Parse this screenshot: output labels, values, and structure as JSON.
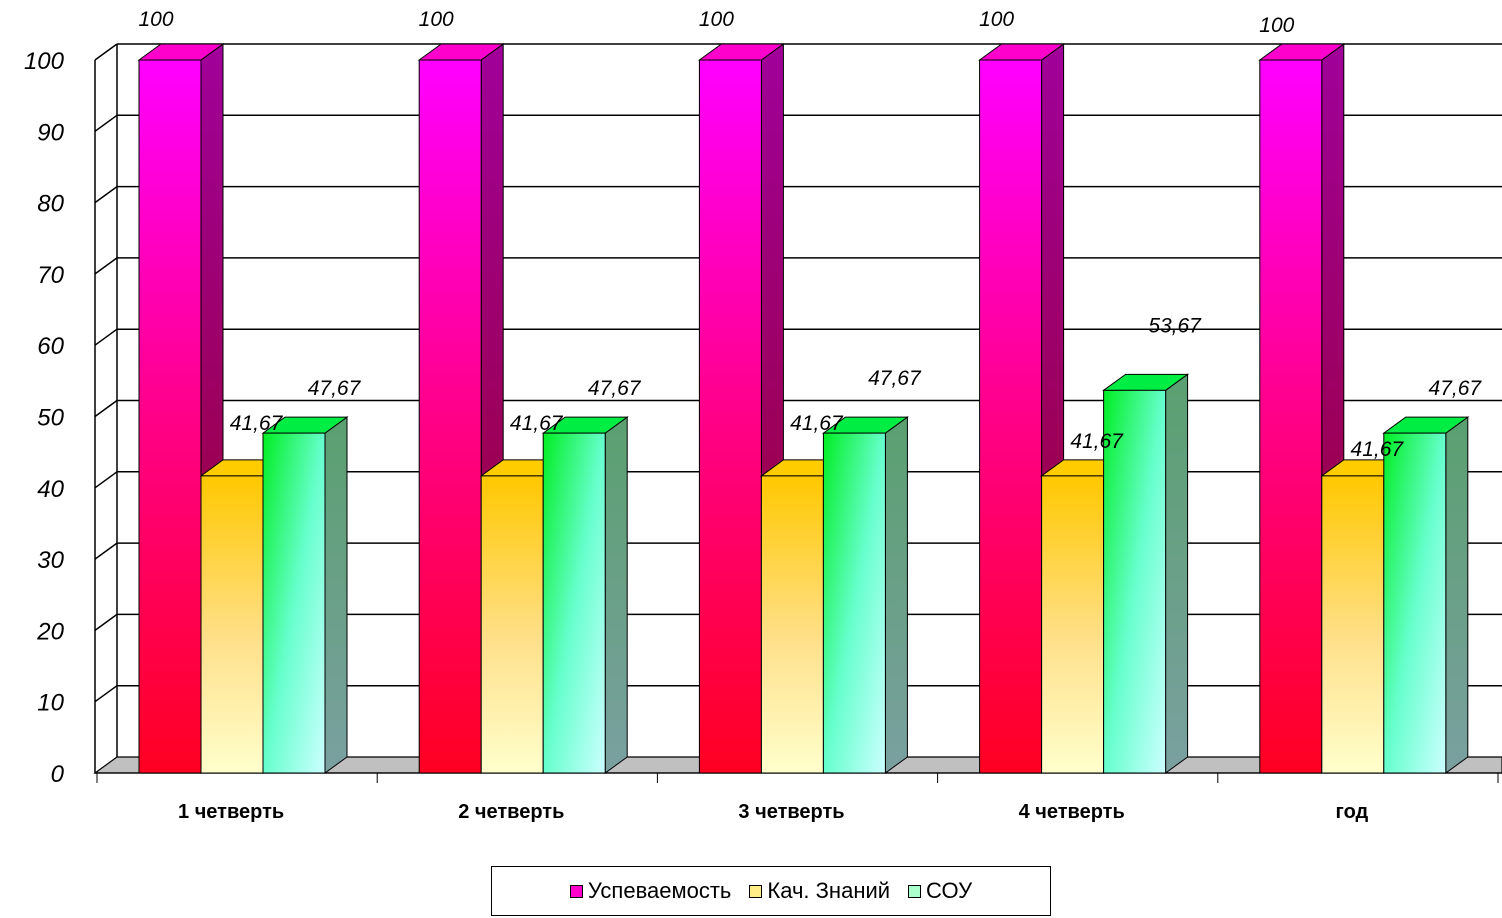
{
  "chart_data": {
    "type": "bar",
    "categories": [
      "1 четверть",
      "2 четверть",
      "3 четверть",
      "4 четверть",
      "год"
    ],
    "series": [
      {
        "name": "Успеваемость",
        "values": [
          100,
          100,
          100,
          100,
          100
        ],
        "labels": [
          "100",
          "100",
          "100",
          "100",
          "100"
        ],
        "color": "#ff00cc"
      },
      {
        "name": "Кач. Знаний",
        "values": [
          41.67,
          41.67,
          41.67,
          41.67,
          41.67
        ],
        "labels": [
          "41,67",
          "41,67",
          "41,67",
          "41,67",
          "41,67"
        ],
        "color": "#ffcc00"
      },
      {
        "name": "СОУ",
        "values": [
          47.67,
          47.67,
          47.67,
          53.67,
          47.67
        ],
        "labels": [
          "47,67",
          "47,67",
          "47,67",
          "53,67",
          "47,67"
        ],
        "color": "#00ee44"
      }
    ],
    "yticks": [
      "0",
      "10",
      "20",
      "30",
      "40",
      "50",
      "60",
      "70",
      "80",
      "90",
      "100"
    ],
    "ylim": [
      0,
      100
    ],
    "grid": true,
    "three_d": true,
    "legend_position": "bottom"
  }
}
